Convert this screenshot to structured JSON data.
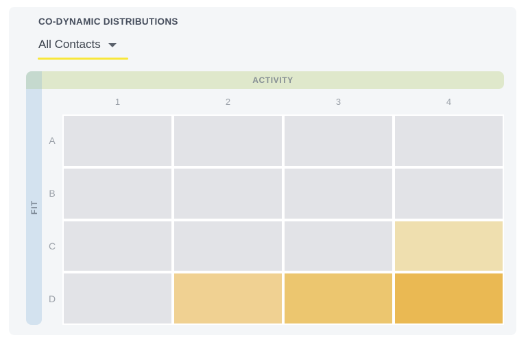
{
  "card": {
    "title": "CO-DYNAMIC DISTRIBUTIONS",
    "filter": {
      "selected": "All Contacts"
    }
  },
  "colors": {
    "card_background": "#f4f6f8",
    "underline_accent": "#f8e73a",
    "activity_band": "#dfe8cb",
    "fit_band": "#d3e2ef",
    "corner_square": "#c5d9ce",
    "empty_cell": "#e2e3e7"
  },
  "chart_data": {
    "type": "heatmap",
    "title": "CO-DYNAMIC DISTRIBUTIONS",
    "x_axis": {
      "label": "ACTIVITY",
      "categories": [
        "1",
        "2",
        "3",
        "4"
      ]
    },
    "y_axis": {
      "label": "FIT",
      "categories": [
        "A",
        "B",
        "C",
        "D"
      ]
    },
    "rows": [
      {
        "label": "A",
        "cells": [
          0,
          0,
          0,
          0
        ]
      },
      {
        "label": "B",
        "cells": [
          0,
          0,
          0,
          0
        ]
      },
      {
        "label": "C",
        "cells": [
          0,
          0,
          0,
          1
        ]
      },
      {
        "label": "D",
        "cells": [
          0,
          2,
          3,
          4
        ]
      }
    ],
    "level_colors": [
      "#e2e3e7",
      "#efdfaf",
      "#f0d192",
      "#ecc66f",
      "#eab953"
    ],
    "legend": "none",
    "grid": "white-gaps"
  }
}
